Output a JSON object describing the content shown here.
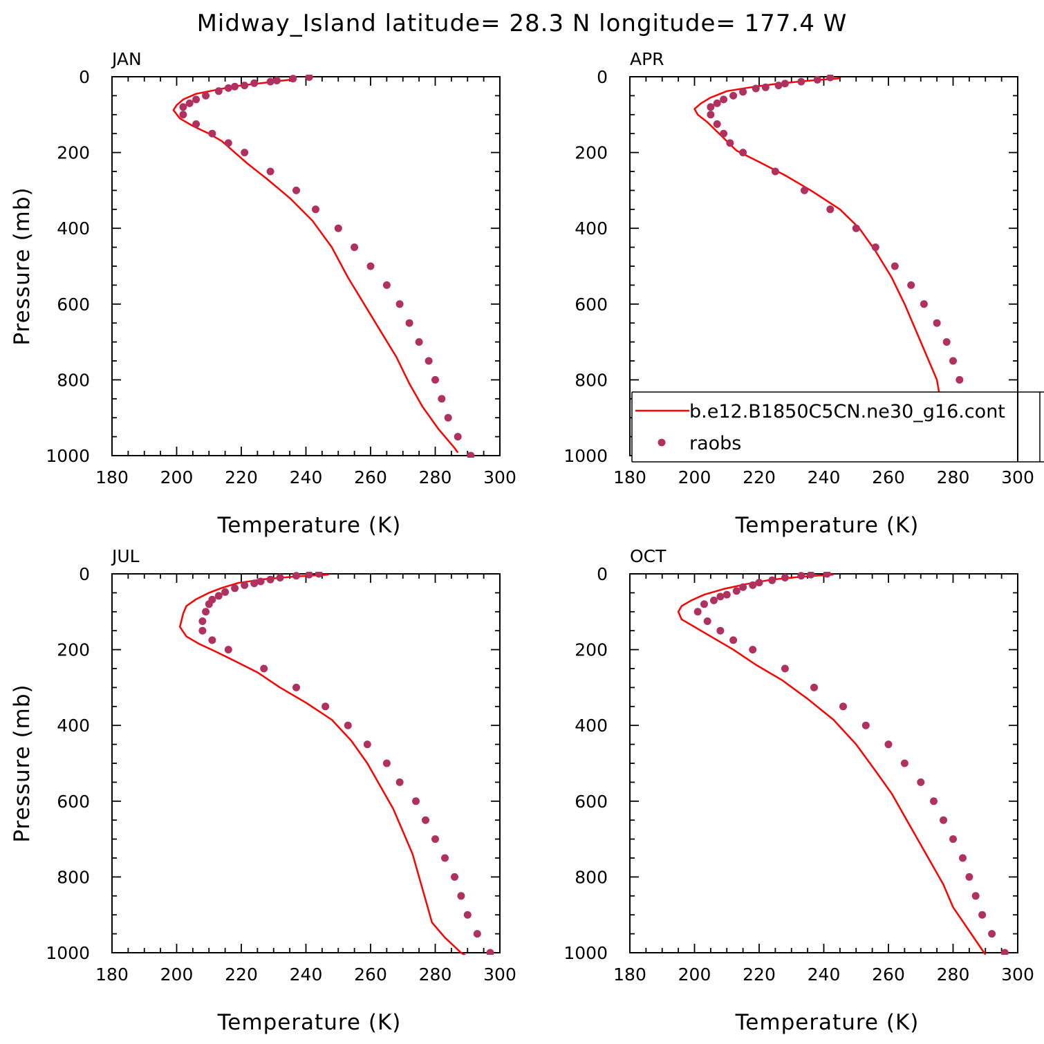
{
  "title": "Midway_Island  latitude= 28.3 N longitude= 177.4 W",
  "colors": {
    "model_line": "#ff0000",
    "obs_marker": "#b0305f",
    "axes": "#000000"
  },
  "legend": {
    "panel": 1,
    "entries": [
      {
        "label": "b.e12.B1850C5CN.ne30_g16.cont",
        "style": "line",
        "color": "#ff0000"
      },
      {
        "label": "raobs",
        "style": "marker",
        "color": "#b0305f"
      }
    ]
  },
  "chart_data": [
    {
      "type": "line",
      "panel_label": "JAN",
      "xlabel": "Temperature (K)",
      "ylabel": "Pressure (mb)",
      "xlim": [
        180,
        300
      ],
      "ylim": [
        1000,
        0
      ],
      "xticks": [
        180,
        200,
        220,
        240,
        260,
        280,
        300
      ],
      "yticks": [
        0,
        200,
        400,
        600,
        800,
        1000
      ],
      "series": [
        {
          "name": "b.e12.B1850C5CN.ne30_g16.cont",
          "kind": "line",
          "points": [
            [
              236,
              7
            ],
            [
              228,
              15
            ],
            [
              218,
              25
            ],
            [
              212,
              35
            ],
            [
              206,
              45
            ],
            [
              202,
              60
            ],
            [
              200,
              75
            ],
            [
              199,
              88
            ],
            [
              201,
              110
            ],
            [
              205,
              130
            ],
            [
              210,
              150
            ],
            [
              214,
              170
            ],
            [
              218,
              200
            ],
            [
              222,
              230
            ],
            [
              228,
              270
            ],
            [
              235,
              320
            ],
            [
              242,
              380
            ],
            [
              248,
              450
            ],
            [
              253,
              530
            ],
            [
              258,
              600
            ],
            [
              263,
              670
            ],
            [
              268,
              740
            ],
            [
              272,
              810
            ],
            [
              276,
              870
            ],
            [
              281,
              930
            ],
            [
              286,
              980
            ],
            [
              287,
              992
            ]
          ]
        },
        {
          "name": "raobs",
          "kind": "marker",
          "points": [
            [
              241,
              1
            ],
            [
              236,
              5
            ],
            [
              231,
              10
            ],
            [
              229,
              13
            ],
            [
              224,
              17
            ],
            [
              221,
              23
            ],
            [
              218,
              26
            ],
            [
              216,
              30
            ],
            [
              213,
              38
            ],
            [
              209,
              50
            ],
            [
              206,
              60
            ],
            [
              204,
              70
            ],
            [
              202,
              80
            ],
            [
              202,
              100
            ],
            [
              206,
              125
            ],
            [
              211,
              150
            ],
            [
              216,
              175
            ],
            [
              221,
              200
            ],
            [
              229,
              250
            ],
            [
              237,
              300
            ],
            [
              243,
              350
            ],
            [
              250,
              400
            ],
            [
              255,
              450
            ],
            [
              260,
              500
            ],
            [
              265,
              550
            ],
            [
              269,
              600
            ],
            [
              272,
              650
            ],
            [
              275,
              700
            ],
            [
              278,
              750
            ],
            [
              280,
              800
            ],
            [
              282,
              850
            ],
            [
              284,
              900
            ],
            [
              287,
              950
            ],
            [
              291,
              1000
            ]
          ]
        }
      ]
    },
    {
      "type": "line",
      "panel_label": "APR",
      "xlabel": "Temperature (K)",
      "ylabel": "",
      "xlim": [
        180,
        300
      ],
      "ylim": [
        1000,
        0
      ],
      "xticks": [
        180,
        200,
        220,
        240,
        260,
        280,
        300
      ],
      "yticks": [
        0,
        200,
        400,
        600,
        800,
        1000
      ],
      "series": [
        {
          "name": "b.e12.B1850C5CN.ne30_g16.cont",
          "kind": "line",
          "points": [
            [
              245,
              4
            ],
            [
              236,
              10
            ],
            [
              226,
              18
            ],
            [
              218,
              27
            ],
            [
              210,
              38
            ],
            [
              205,
              55
            ],
            [
              202,
              70
            ],
            [
              200,
              85
            ],
            [
              201,
              100
            ],
            [
              204,
              120
            ],
            [
              207,
              145
            ],
            [
              210,
              170
            ],
            [
              213,
              195
            ],
            [
              220,
              225
            ],
            [
              228,
              260
            ],
            [
              236,
              300
            ],
            [
              245,
              350
            ],
            [
              251,
              400
            ],
            [
              256,
              460
            ],
            [
              261,
              530
            ],
            [
              265,
              600
            ],
            [
              269,
              680
            ],
            [
              272,
              740
            ],
            [
              275,
              800
            ],
            [
              276,
              850
            ],
            [
              278,
              900
            ],
            [
              282,
              940
            ],
            [
              285,
              985
            ],
            [
              287,
              1010
            ]
          ]
        },
        {
          "name": "raobs",
          "kind": "marker",
          "points": [
            [
              242,
              2
            ],
            [
              238,
              8
            ],
            [
              233,
              13
            ],
            [
              228,
              18
            ],
            [
              226,
              23
            ],
            [
              222,
              28
            ],
            [
              219,
              31
            ],
            [
              215,
              40
            ],
            [
              212,
              50
            ],
            [
              209,
              60
            ],
            [
              207,
              70
            ],
            [
              205,
              80
            ],
            [
              205,
              100
            ],
            [
              207,
              125
            ],
            [
              209,
              150
            ],
            [
              211,
              175
            ],
            [
              215,
              200
            ],
            [
              225,
              250
            ],
            [
              234,
              300
            ],
            [
              242,
              350
            ],
            [
              250,
              400
            ],
            [
              256,
              450
            ],
            [
              262,
              500
            ],
            [
              267,
              550
            ],
            [
              271,
              600
            ],
            [
              275,
              650
            ],
            [
              278,
              700
            ],
            [
              280,
              750
            ],
            [
              282,
              800
            ],
            [
              283,
              850
            ],
            [
              285,
              900
            ],
            [
              288,
              950
            ],
            [
              291,
              1000
            ]
          ]
        }
      ]
    },
    {
      "type": "line",
      "panel_label": "JUL",
      "xlabel": "Temperature (K)",
      "ylabel": "Pressure (mb)",
      "xlim": [
        180,
        300
      ],
      "ylim": [
        1000,
        0
      ],
      "xticks": [
        180,
        200,
        220,
        240,
        260,
        280,
        300
      ],
      "yticks": [
        0,
        200,
        400,
        600,
        800,
        1000
      ],
      "series": [
        {
          "name": "b.e12.B1850C5CN.ne30_g16.cont",
          "kind": "line",
          "points": [
            [
              247,
              2
            ],
            [
              237,
              7
            ],
            [
              227,
              14
            ],
            [
              219,
              24
            ],
            [
              214,
              37
            ],
            [
              210,
              50
            ],
            [
              206,
              67
            ],
            [
              203,
              85
            ],
            [
              202,
              105
            ],
            [
              201,
              140
            ],
            [
              203,
              165
            ],
            [
              207,
              185
            ],
            [
              212,
              205
            ],
            [
              218,
              230
            ],
            [
              225,
              260
            ],
            [
              232,
              300
            ],
            [
              240,
              340
            ],
            [
              248,
              385
            ],
            [
              254,
              440
            ],
            [
              259,
              500
            ],
            [
              263,
              560
            ],
            [
              267,
              620
            ],
            [
              270,
              680
            ],
            [
              273,
              740
            ],
            [
              275,
              800
            ],
            [
              277,
              860
            ],
            [
              279,
              920
            ],
            [
              283,
              960
            ],
            [
              288,
              1000
            ],
            [
              290,
              1010
            ]
          ]
        },
        {
          "name": "raobs",
          "kind": "marker",
          "points": [
            [
              244,
              0
            ],
            [
              241,
              2
            ],
            [
              237,
              5
            ],
            [
              232,
              10
            ],
            [
              229,
              15
            ],
            [
              226,
              20
            ],
            [
              224,
              25
            ],
            [
              221,
              30
            ],
            [
              218,
              38
            ],
            [
              215,
              48
            ],
            [
              213,
              58
            ],
            [
              211,
              68
            ],
            [
              210,
              80
            ],
            [
              209,
              100
            ],
            [
              208,
              125
            ],
            [
              208,
              150
            ],
            [
              211,
              175
            ],
            [
              216,
              200
            ],
            [
              227,
              250
            ],
            [
              237,
              300
            ],
            [
              246,
              350
            ],
            [
              253,
              400
            ],
            [
              259,
              450
            ],
            [
              265,
              500
            ],
            [
              269,
              550
            ],
            [
              274,
              600
            ],
            [
              277,
              650
            ],
            [
              280,
              700
            ],
            [
              283,
              750
            ],
            [
              286,
              800
            ],
            [
              288,
              850
            ],
            [
              290,
              900
            ],
            [
              293,
              950
            ],
            [
              297,
              1000
            ]
          ]
        }
      ]
    },
    {
      "type": "line",
      "panel_label": "OCT",
      "xlabel": "Temperature (K)",
      "ylabel": "",
      "xlim": [
        180,
        300
      ],
      "ylim": [
        1000,
        0
      ],
      "xticks": [
        180,
        200,
        220,
        240,
        260,
        280,
        300
      ],
      "yticks": [
        0,
        200,
        400,
        600,
        800,
        1000
      ],
      "series": [
        {
          "name": "b.e12.B1850C5CN.ne30_g16.cont",
          "kind": "line",
          "points": [
            [
              243,
              2
            ],
            [
              234,
              7
            ],
            [
              224,
              15
            ],
            [
              216,
              27
            ],
            [
              209,
              40
            ],
            [
              203,
              55
            ],
            [
              199,
              70
            ],
            [
              196,
              85
            ],
            [
              195,
              100
            ],
            [
              196,
              120
            ],
            [
              200,
              140
            ],
            [
              205,
              165
            ],
            [
              212,
              200
            ],
            [
              219,
              240
            ],
            [
              227,
              280
            ],
            [
              235,
              330
            ],
            [
              243,
              385
            ],
            [
              250,
              450
            ],
            [
              256,
              520
            ],
            [
              261,
              580
            ],
            [
              265,
              640
            ],
            [
              269,
              700
            ],
            [
              273,
              760
            ],
            [
              277,
              820
            ],
            [
              280,
              880
            ],
            [
              284,
              930
            ],
            [
              288,
              980
            ],
            [
              290,
              1005
            ]
          ]
        },
        {
          "name": "raobs",
          "kind": "marker",
          "points": [
            [
              241,
              0
            ],
            [
              236,
              2
            ],
            [
              233,
              5
            ],
            [
              228,
              10
            ],
            [
              224,
              17
            ],
            [
              220,
              23
            ],
            [
              218,
              30
            ],
            [
              215,
              35
            ],
            [
              213,
              45
            ],
            [
              210,
              55
            ],
            [
              208,
              60
            ],
            [
              206,
              70
            ],
            [
              203,
              80
            ],
            [
              201,
              100
            ],
            [
              204,
              125
            ],
            [
              208,
              150
            ],
            [
              212,
              175
            ],
            [
              218,
              200
            ],
            [
              228,
              250
            ],
            [
              237,
              300
            ],
            [
              246,
              350
            ],
            [
              253,
              400
            ],
            [
              260,
              450
            ],
            [
              265,
              500
            ],
            [
              270,
              550
            ],
            [
              274,
              600
            ],
            [
              277,
              650
            ],
            [
              280,
              700
            ],
            [
              283,
              750
            ],
            [
              285,
              800
            ],
            [
              287,
              850
            ],
            [
              289,
              900
            ],
            [
              292,
              950
            ],
            [
              296,
              1000
            ]
          ]
        }
      ]
    }
  ]
}
